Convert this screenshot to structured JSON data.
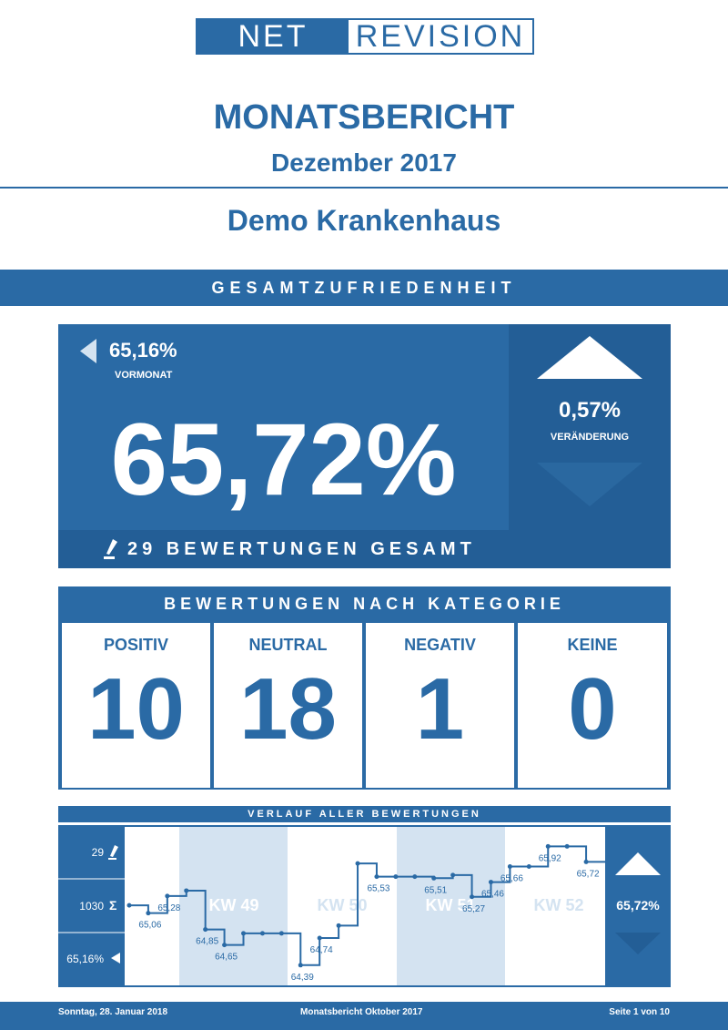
{
  "logo": {
    "part1": "NET",
    "part2": "REVISION"
  },
  "header": {
    "title": "MONATSBERICHT",
    "period": "Dezember 2017",
    "client": "Demo Krankenhaus"
  },
  "section_title": "GESAMTZUFRIEDENHEIT",
  "overview": {
    "previous_value": "65,16%",
    "previous_label": "VORMONAT",
    "current_value": "65,72%",
    "change_value": "0,57%",
    "change_label": "VERÄNDERUNG",
    "total_reviews": "29 BEWERTUNGEN GESAMT"
  },
  "categories": {
    "title": "BEWERTUNGEN NACH KATEGORIE",
    "items": [
      {
        "label": "POSITIV",
        "value": "10"
      },
      {
        "label": "NEUTRAL",
        "value": "18"
      },
      {
        "label": "NEGATIV",
        "value": "1"
      },
      {
        "label": "KEINE",
        "value": "0"
      }
    ]
  },
  "timeline": {
    "title": "VERLAUF ALLER BEWERTUNGEN",
    "side_count": "29",
    "side_sum": "1030",
    "side_prev": "65,16%",
    "current": "65,72%",
    "weeks": [
      "KW 49",
      "KW 50",
      "KW 51",
      "KW 52"
    ]
  },
  "chart_data": {
    "type": "line",
    "x": [
      0,
      1,
      2,
      3,
      4,
      5,
      6,
      7,
      8,
      9,
      10,
      11,
      12,
      13,
      14,
      15,
      16,
      17,
      18,
      19,
      20,
      21,
      22,
      23,
      24,
      25
    ],
    "values": [
      65.16,
      65.06,
      65.28,
      65.35,
      64.85,
      64.65,
      64.8,
      64.8,
      64.8,
      64.39,
      64.74,
      64.9,
      65.7,
      65.53,
      65.53,
      65.53,
      65.51,
      65.55,
      65.27,
      65.46,
      65.66,
      65.66,
      65.92,
      65.92,
      65.72,
      65.72
    ],
    "point_labels": [
      {
        "i": 1,
        "text": "65,06"
      },
      {
        "i": 2,
        "text": "65,28"
      },
      {
        "i": 4,
        "text": "64,85"
      },
      {
        "i": 5,
        "text": "64,65"
      },
      {
        "i": 9,
        "text": "64,39"
      },
      {
        "i": 10,
        "text": "64,74"
      },
      {
        "i": 13,
        "text": "65,53"
      },
      {
        "i": 16,
        "text": "65,51"
      },
      {
        "i": 18,
        "text": "65,27"
      },
      {
        "i": 19,
        "text": "65,46"
      },
      {
        "i": 20,
        "text": "65,66"
      },
      {
        "i": 22,
        "text": "65,92"
      },
      {
        "i": 24,
        "text": "65,72"
      }
    ],
    "ylim": [
      64.2,
      66.1
    ]
  },
  "footer": {
    "date": "Sonntag, 28. Januar 2018",
    "report": "Monatsbericht Oktober 2017",
    "page": "Seite 1 von 10"
  },
  "colors": {
    "primary": "#2a6aa5",
    "dark": "#235e96",
    "week_band": "#d4e3f1"
  }
}
